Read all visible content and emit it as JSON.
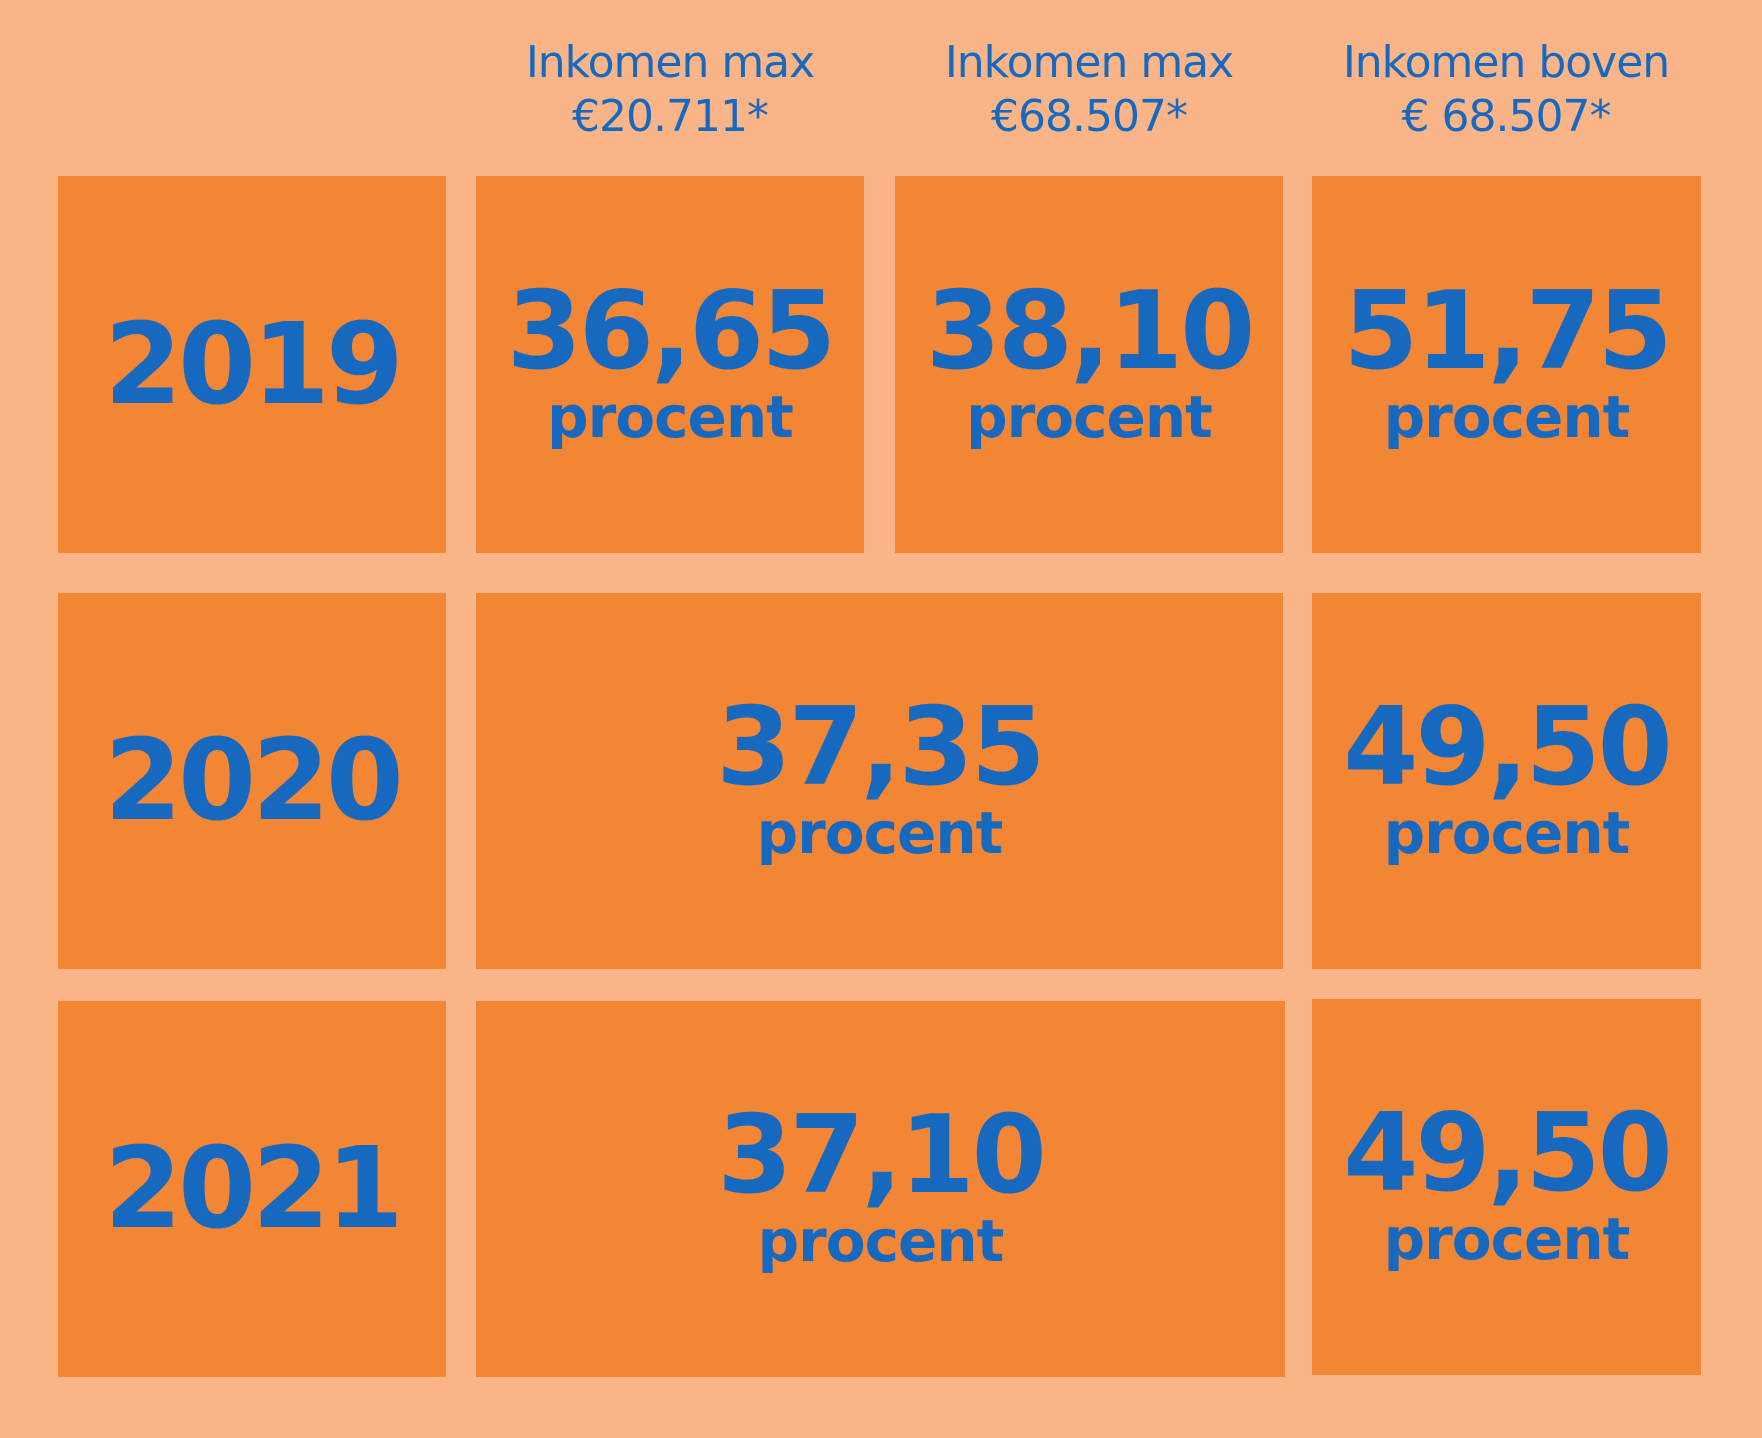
{
  "headers": [
    {
      "line1": "Inkomen max",
      "line2": "€20.711*"
    },
    {
      "line1": "Inkomen max",
      "line2": "€68.507*"
    },
    {
      "line1": "Inkomen boven",
      "line2": "€ 68.507*"
    }
  ],
  "unit": "procent",
  "rows": [
    {
      "year": "2019",
      "cells": [
        "36,65",
        "38,10",
        "51,75"
      ]
    },
    {
      "year": "2020",
      "cells": [
        "37,35",
        "49,50"
      ]
    },
    {
      "year": "2021",
      "cells": [
        "37,10",
        "49,50"
      ]
    }
  ],
  "colors": {
    "background": "#f9b587",
    "box": "#f38634",
    "text": "#1769c0"
  }
}
